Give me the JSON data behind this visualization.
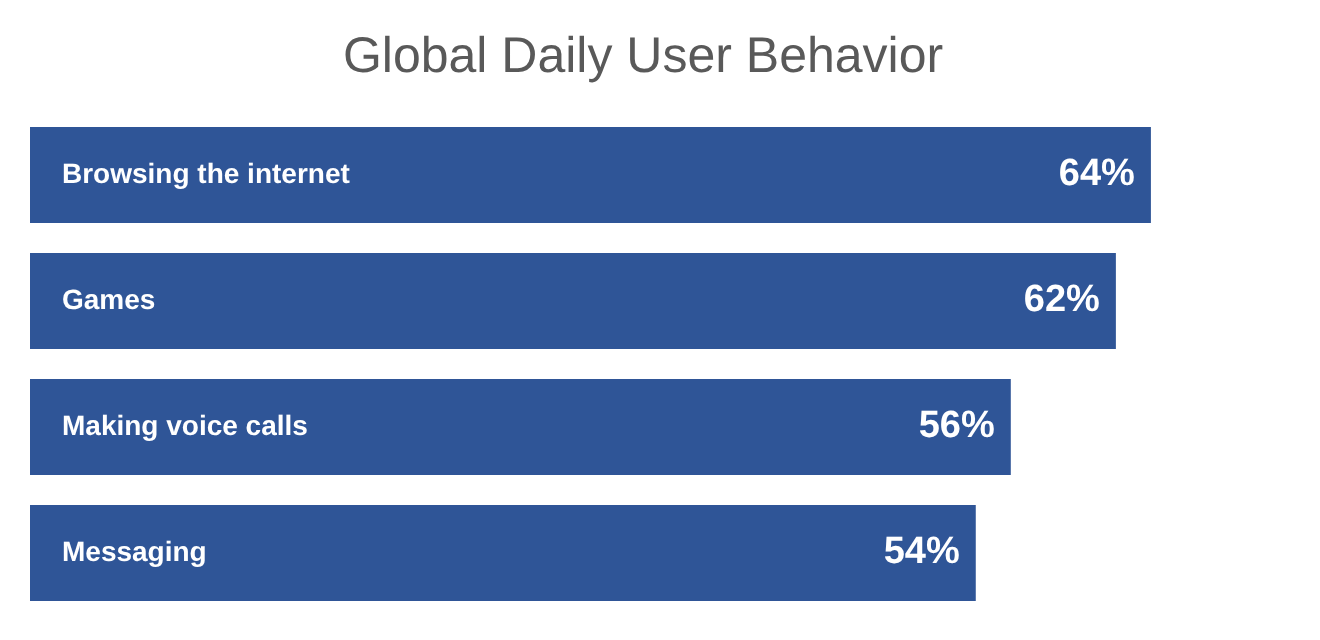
{
  "chart_data": {
    "type": "bar",
    "orientation": "horizontal",
    "title": "Global Daily User Behavior",
    "categories": [
      "Browsing the internet",
      "Games",
      "Making voice calls",
      "Messaging"
    ],
    "values": [
      64,
      62,
      56,
      54
    ],
    "value_labels": [
      "64%",
      "62%",
      "56%",
      "54%"
    ],
    "color": "#2f5597",
    "tick_labels": false,
    "legend": false
  }
}
